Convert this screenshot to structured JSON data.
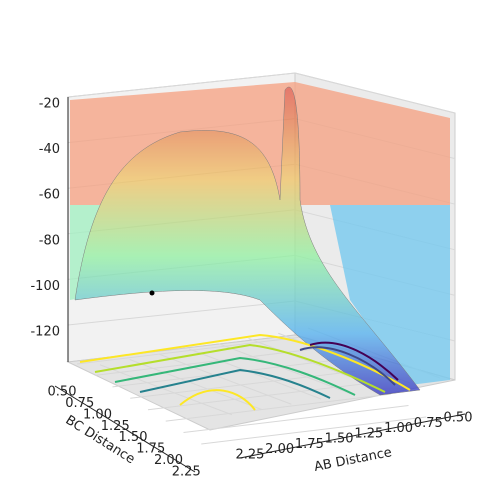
{
  "chart_data": {
    "type": "surface3d",
    "xlabel": "AB Distance",
    "ylabel": "BC Distance",
    "xticks": [
      {
        "value": 0.5,
        "label": "0.50"
      },
      {
        "value": 0.75,
        "label": "0.75"
      },
      {
        "value": 1.0,
        "label": "1.00"
      },
      {
        "value": 1.25,
        "label": "1.25"
      },
      {
        "value": 1.5,
        "label": "1.50"
      },
      {
        "value": 1.75,
        "label": "1.75"
      },
      {
        "value": 2.0,
        "label": "2.00"
      },
      {
        "value": 2.25,
        "label": "2.25"
      }
    ],
    "yticks": [
      {
        "value": 0.5,
        "label": "0.50"
      },
      {
        "value": 0.75,
        "label": "0.75"
      },
      {
        "value": 1.0,
        "label": "1.00"
      },
      {
        "value": 1.25,
        "label": "1.25"
      },
      {
        "value": 1.5,
        "label": "1.50"
      },
      {
        "value": 1.75,
        "label": "1.75"
      },
      {
        "value": 2.0,
        "label": "2.00"
      },
      {
        "value": 2.25,
        "label": "2.25"
      }
    ],
    "zticks": [
      -20,
      -40,
      -60,
      -80,
      -100,
      -120
    ],
    "grid": true
  }
}
